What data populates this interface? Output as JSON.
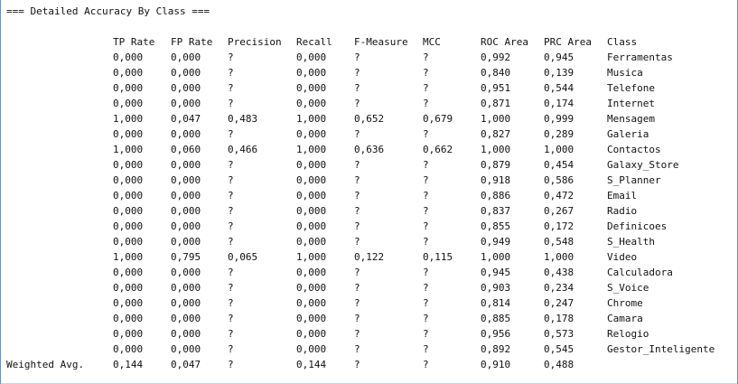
{
  "heading": "=== Detailed Accuracy By Class ===",
  "columns": [
    "TP Rate",
    "FP Rate",
    "Precision",
    "Recall",
    "F-Measure",
    "MCC",
    "ROC Area",
    "PRC Area",
    "Class"
  ],
  "rows": [
    [
      "0,000",
      "0,000",
      "?",
      "0,000",
      "?",
      "?",
      "0,992",
      "0,945",
      "Ferramentas"
    ],
    [
      "0,000",
      "0,000",
      "?",
      "0,000",
      "?",
      "?",
      "0,840",
      "0,139",
      "Musica"
    ],
    [
      "0,000",
      "0,000",
      "?",
      "0,000",
      "?",
      "?",
      "0,951",
      "0,544",
      "Telefone"
    ],
    [
      "0,000",
      "0,000",
      "?",
      "0,000",
      "?",
      "?",
      "0,871",
      "0,174",
      "Internet"
    ],
    [
      "1,000",
      "0,047",
      "0,483",
      "1,000",
      "0,652",
      "0,679",
      "1,000",
      "0,999",
      "Mensagem"
    ],
    [
      "0,000",
      "0,000",
      "?",
      "0,000",
      "?",
      "?",
      "0,827",
      "0,289",
      "Galeria"
    ],
    [
      "1,000",
      "0,060",
      "0,466",
      "1,000",
      "0,636",
      "0,662",
      "1,000",
      "1,000",
      "Contactos"
    ],
    [
      "0,000",
      "0,000",
      "?",
      "0,000",
      "?",
      "?",
      "0,879",
      "0,454",
      "Galaxy_Store"
    ],
    [
      "0,000",
      "0,000",
      "?",
      "0,000",
      "?",
      "?",
      "0,918",
      "0,586",
      "S_Planner"
    ],
    [
      "0,000",
      "0,000",
      "?",
      "0,000",
      "?",
      "?",
      "0,886",
      "0,472",
      "Email"
    ],
    [
      "0,000",
      "0,000",
      "?",
      "0,000",
      "?",
      "?",
      "0,837",
      "0,267",
      "Radio"
    ],
    [
      "0,000",
      "0,000",
      "?",
      "0,000",
      "?",
      "?",
      "0,855",
      "0,172",
      "Definicoes"
    ],
    [
      "0,000",
      "0,000",
      "?",
      "0,000",
      "?",
      "?",
      "0,949",
      "0,548",
      "S_Health"
    ],
    [
      "1,000",
      "0,795",
      "0,065",
      "1,000",
      "0,122",
      "0,115",
      "1,000",
      "1,000",
      "Video"
    ],
    [
      "0,000",
      "0,000",
      "?",
      "0,000",
      "?",
      "?",
      "0,945",
      "0,438",
      "Calculadora"
    ],
    [
      "0,000",
      "0,000",
      "?",
      "0,000",
      "?",
      "?",
      "0,903",
      "0,234",
      "S_Voice"
    ],
    [
      "0,000",
      "0,000",
      "?",
      "0,000",
      "?",
      "?",
      "0,814",
      "0,247",
      "Chrome"
    ],
    [
      "0,000",
      "0,000",
      "?",
      "0,000",
      "?",
      "?",
      "0,885",
      "0,178",
      "Camara"
    ],
    [
      "0,000",
      "0,000",
      "?",
      "0,000",
      "?",
      "?",
      "0,956",
      "0,573",
      "Relogio"
    ],
    [
      "0,000",
      "0,000",
      "?",
      "0,000",
      "?",
      "?",
      "0,892",
      "0,545",
      "Gestor_Inteligente"
    ]
  ],
  "weighted_avg": {
    "label": "Weighted Avg.",
    "values": [
      "0,144",
      "0,047",
      "?",
      "0,144",
      "?",
      "?",
      "0,910",
      "0,488"
    ]
  },
  "colors": {
    "text": "#111111",
    "background": "#ffffff",
    "frame_border": "#6f8fb5"
  }
}
